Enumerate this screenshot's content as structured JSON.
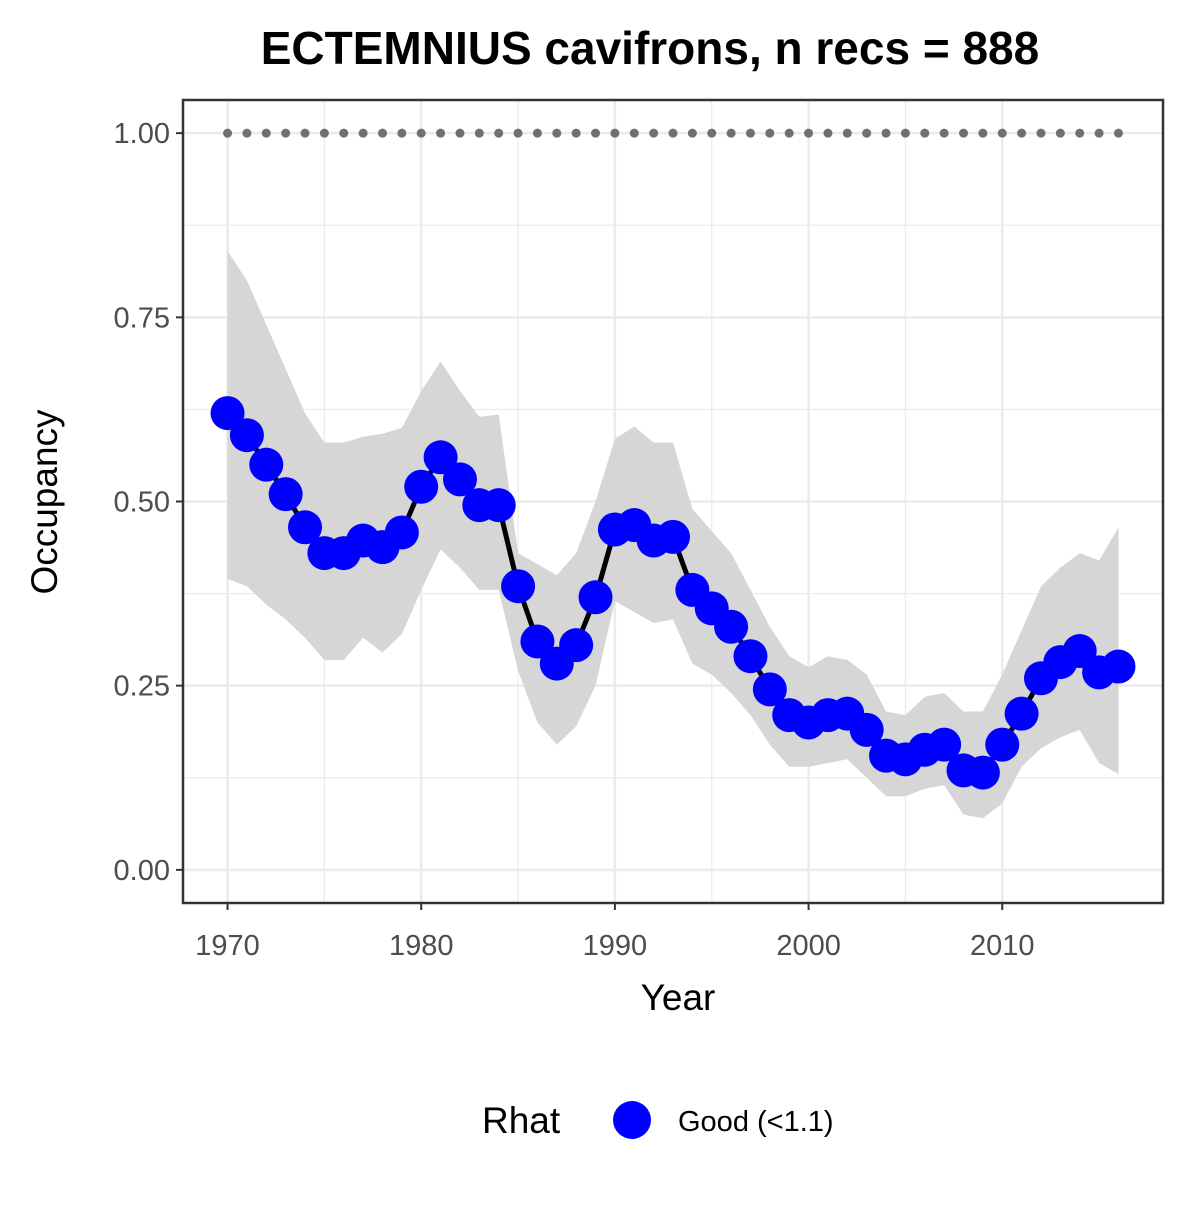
{
  "chart_data": {
    "type": "line",
    "title": "ECTEMNIUS cavifrons, n recs = 888",
    "xlabel": "Year",
    "ylabel": "Occupancy",
    "xlim": [
      1967.7,
      2018.3
    ],
    "ylim": [
      -0.045,
      1.045
    ],
    "x_ticks": [
      1970,
      1980,
      1990,
      2000,
      2010
    ],
    "x_tick_labels": [
      "1970",
      "1980",
      "1990",
      "2000",
      "2010"
    ],
    "y_ticks": [
      0,
      0.25,
      0.5,
      0.75,
      1.0
    ],
    "y_tick_labels": [
      "0.00",
      "0.25",
      "0.50",
      "0.75",
      "1.00"
    ],
    "grid": true,
    "legend": {
      "title": "Rhat",
      "position": "bottom",
      "entries": [
        {
          "label": "Good (<1.1)",
          "color": "#0000ff"
        }
      ]
    },
    "colors": {
      "points": "#0000ff",
      "line": "#000000",
      "ribbon": "#d6d6d6",
      "reference": "#707070",
      "grid": "#ebebeb",
      "panel_border": "#333333"
    },
    "x": [
      1970,
      1971,
      1972,
      1973,
      1974,
      1975,
      1976,
      1977,
      1978,
      1979,
      1980,
      1981,
      1982,
      1983,
      1984,
      1985,
      1986,
      1987,
      1988,
      1989,
      1990,
      1991,
      1992,
      1993,
      1994,
      1995,
      1996,
      1997,
      1998,
      1999,
      2000,
      2001,
      2002,
      2003,
      2004,
      2005,
      2006,
      2007,
      2008,
      2009,
      2010,
      2011,
      2012,
      2013,
      2014,
      2015,
      2016
    ],
    "series": [
      {
        "name": "Good (<1.1)",
        "kind": "mean",
        "values": [
          0.62,
          0.59,
          0.55,
          0.51,
          0.465,
          0.43,
          0.43,
          0.447,
          0.438,
          0.458,
          0.52,
          0.56,
          0.53,
          0.495,
          0.495,
          0.385,
          0.31,
          0.28,
          0.305,
          0.37,
          0.462,
          0.468,
          0.447,
          0.452,
          0.38,
          0.355,
          0.33,
          0.29,
          0.245,
          0.21,
          0.2,
          0.21,
          0.212,
          0.19,
          0.155,
          0.15,
          0.163,
          0.17,
          0.135,
          0.132,
          0.17,
          0.212,
          0.26,
          0.282,
          0.297,
          0.268,
          0.276
        ]
      },
      {
        "kind": "upper",
        "values": [
          0.84,
          0.8,
          0.74,
          0.68,
          0.62,
          0.58,
          0.58,
          0.588,
          0.592,
          0.6,
          0.65,
          0.69,
          0.65,
          0.615,
          0.618,
          0.43,
          0.415,
          0.4,
          0.43,
          0.5,
          0.585,
          0.602,
          0.58,
          0.58,
          0.49,
          0.46,
          0.43,
          0.38,
          0.33,
          0.29,
          0.275,
          0.29,
          0.285,
          0.265,
          0.215,
          0.21,
          0.235,
          0.24,
          0.215,
          0.215,
          0.265,
          0.325,
          0.385,
          0.41,
          0.43,
          0.42,
          0.465
        ]
      },
      {
        "kind": "lower",
        "values": [
          0.395,
          0.385,
          0.36,
          0.34,
          0.315,
          0.285,
          0.285,
          0.315,
          0.295,
          0.32,
          0.38,
          0.435,
          0.41,
          0.38,
          0.38,
          0.27,
          0.2,
          0.17,
          0.195,
          0.25,
          0.365,
          0.35,
          0.335,
          0.34,
          0.28,
          0.265,
          0.24,
          0.21,
          0.17,
          0.14,
          0.14,
          0.145,
          0.15,
          0.125,
          0.1,
          0.1,
          0.11,
          0.115,
          0.075,
          0.07,
          0.09,
          0.14,
          0.165,
          0.18,
          0.19,
          0.145,
          0.13
        ]
      },
      {
        "kind": "reference",
        "value": 1.0
      }
    ]
  }
}
